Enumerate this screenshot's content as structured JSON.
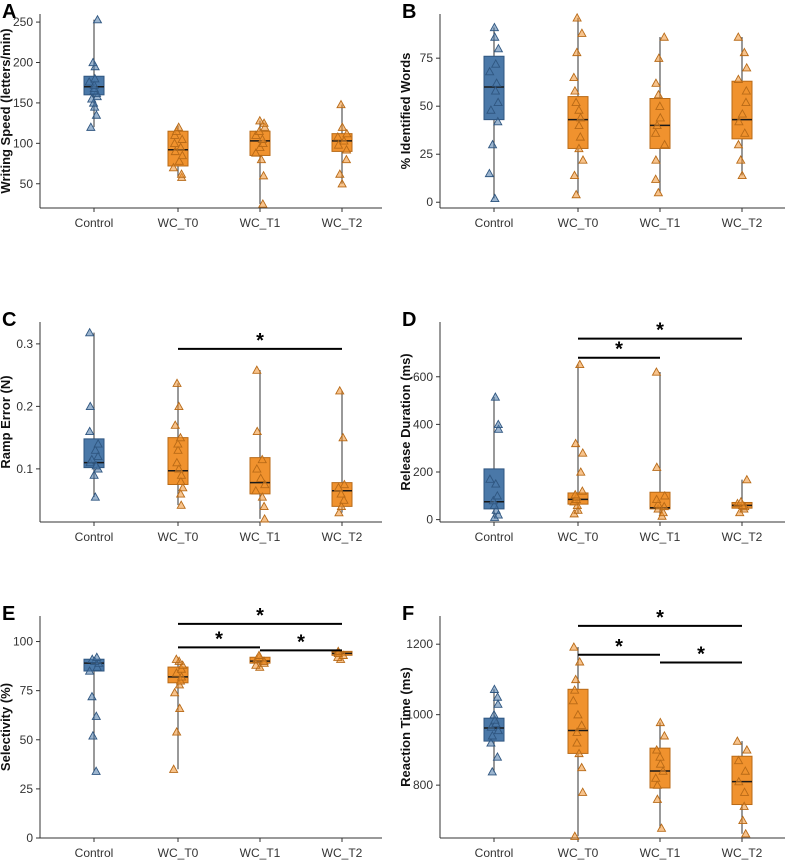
{
  "chart_data": [
    {
      "panel": "A",
      "type": "box",
      "categories": [
        "Control",
        "WC_T0",
        "WC_T1",
        "WC_T2"
      ],
      "ylabel": "Writing Speed (letters/min)",
      "ylim": [
        20,
        260
      ],
      "yticks": [
        50,
        100,
        150,
        200,
        250
      ],
      "boxes": [
        {
          "min": 120,
          "q1": 160,
          "median": 170,
          "q3": 183,
          "max": 253,
          "points": [
            120,
            135,
            145,
            150,
            155,
            158,
            162,
            165,
            168,
            172,
            176,
            180,
            195,
            200,
            253
          ]
        },
        {
          "min": 58,
          "q1": 72,
          "median": 92,
          "q3": 115,
          "max": 122,
          "points": [
            58,
            62,
            70,
            78,
            85,
            90,
            95,
            100,
            105,
            110,
            115,
            120
          ]
        },
        {
          "min": 25,
          "q1": 85,
          "median": 103,
          "q3": 115,
          "max": 128,
          "points": [
            25,
            60,
            80,
            88,
            95,
            100,
            105,
            110,
            115,
            120,
            125,
            128
          ]
        },
        {
          "min": 50,
          "q1": 90,
          "median": 103,
          "q3": 112,
          "max": 148,
          "points": [
            50,
            62,
            80,
            92,
            98,
            103,
            108,
            112,
            120,
            148
          ]
        }
      ],
      "significance": []
    },
    {
      "panel": "B",
      "type": "box",
      "categories": [
        "Control",
        "WC_T0",
        "WC_T1",
        "WC_T2"
      ],
      "ylabel": "% Identified Words",
      "ylim": [
        -3,
        98
      ],
      "yticks": [
        0,
        25,
        50,
        75
      ],
      "boxes": [
        {
          "min": 2,
          "q1": 43,
          "median": 60,
          "q3": 76,
          "max": 91,
          "points": [
            2,
            15,
            30,
            42,
            48,
            52,
            58,
            62,
            68,
            72,
            80,
            86,
            91
          ]
        },
        {
          "min": 4,
          "q1": 28,
          "median": 43,
          "q3": 55,
          "max": 96,
          "points": [
            4,
            14,
            22,
            28,
            34,
            40,
            44,
            48,
            52,
            58,
            65,
            78,
            88,
            96
          ]
        },
        {
          "min": 5,
          "q1": 28,
          "median": 40,
          "q3": 54,
          "max": 86,
          "points": [
            5,
            12,
            22,
            30,
            36,
            40,
            44,
            50,
            56,
            62,
            75,
            86
          ]
        },
        {
          "min": 14,
          "q1": 33,
          "median": 43,
          "q3": 63,
          "max": 86,
          "points": [
            14,
            22,
            30,
            36,
            42,
            46,
            52,
            58,
            64,
            70,
            78,
            86
          ]
        }
      ],
      "significance": []
    },
    {
      "panel": "C",
      "type": "box",
      "categories": [
        "Control",
        "WC_T0",
        "WC_T1",
        "WC_T2"
      ],
      "ylabel": "Ramp Error (N)",
      "ylim": [
        0.015,
        0.335
      ],
      "yticks": [
        0.1,
        0.2,
        0.3
      ],
      "yticklabels": [
        "0.1",
        "0.2",
        "0.3"
      ],
      "boxes": [
        {
          "min": 0.055,
          "q1": 0.102,
          "median": 0.11,
          "q3": 0.148,
          "max": 0.318,
          "points": [
            0.055,
            0.09,
            0.1,
            0.105,
            0.11,
            0.115,
            0.12,
            0.13,
            0.14,
            0.16,
            0.2,
            0.318
          ]
        },
        {
          "min": 0.042,
          "q1": 0.075,
          "median": 0.097,
          "q3": 0.15,
          "max": 0.237,
          "points": [
            0.042,
            0.06,
            0.07,
            0.08,
            0.09,
            0.1,
            0.11,
            0.13,
            0.14,
            0.15,
            0.17,
            0.2,
            0.237
          ]
        },
        {
          "min": 0.02,
          "q1": 0.06,
          "median": 0.078,
          "q3": 0.118,
          "max": 0.258,
          "points": [
            0.02,
            0.04,
            0.055,
            0.065,
            0.075,
            0.085,
            0.1,
            0.115,
            0.16,
            0.258
          ]
        },
        {
          "min": 0.03,
          "q1": 0.04,
          "median": 0.065,
          "q3": 0.078,
          "max": 0.225,
          "points": [
            0.03,
            0.04,
            0.05,
            0.06,
            0.07,
            0.075,
            0.15,
            0.225
          ]
        }
      ],
      "significance": [
        {
          "from": 1,
          "to": 3,
          "y": 0.292,
          "label": "*"
        }
      ]
    },
    {
      "panel": "D",
      "type": "box",
      "categories": [
        "Control",
        "WC_T0",
        "WC_T1",
        "WC_T2"
      ],
      "ylabel": "Release Duration (ms)",
      "ylim": [
        -10,
        830
      ],
      "yticks": [
        0,
        200,
        400,
        600
      ],
      "boxes": [
        {
          "min": 10,
          "q1": 45,
          "median": 75,
          "q3": 213,
          "max": 515,
          "points": [
            10,
            20,
            40,
            60,
            80,
            100,
            150,
            170,
            380,
            400,
            515
          ]
        },
        {
          "min": 25,
          "q1": 65,
          "median": 85,
          "q3": 112,
          "max": 652,
          "points": [
            25,
            40,
            60,
            75,
            85,
            95,
            105,
            120,
            200,
            280,
            320,
            652
          ]
        },
        {
          "min": 15,
          "q1": 45,
          "median": 50,
          "q3": 115,
          "max": 620,
          "points": [
            15,
            30,
            45,
            55,
            65,
            85,
            100,
            220,
            620
          ]
        },
        {
          "min": 30,
          "q1": 48,
          "median": 60,
          "q3": 72,
          "max": 168,
          "points": [
            30,
            45,
            55,
            60,
            68,
            75,
            168
          ]
        }
      ],
      "significance": [
        {
          "from": 1,
          "to": 3,
          "y": 760,
          "label": "*"
        },
        {
          "from": 1,
          "to": 2,
          "y": 680,
          "label": "*"
        }
      ]
    },
    {
      "panel": "E",
      "type": "box",
      "categories": [
        "Control",
        "WC_T0",
        "WC_T1",
        "WC_T2"
      ],
      "ylabel": "Selectivity (%)",
      "ylim": [
        0,
        113
      ],
      "yticks": [
        0,
        25,
        50,
        75,
        100
      ],
      "boxes": [
        {
          "min": 34,
          "q1": 85,
          "median": 89,
          "q3": 91,
          "max": 92,
          "points": [
            34,
            52,
            62,
            72,
            85,
            87,
            89,
            90,
            91,
            92
          ]
        },
        {
          "min": 35,
          "q1": 79,
          "median": 82,
          "q3": 87,
          "max": 91,
          "points": [
            35,
            54,
            66,
            74,
            78,
            80,
            82,
            84,
            86,
            88,
            90,
            91
          ]
        },
        {
          "min": 87,
          "q1": 89,
          "median": 90,
          "q3": 92,
          "max": 93,
          "points": [
            87,
            88,
            89,
            90,
            91,
            92,
            93
          ]
        },
        {
          "min": 91,
          "q1": 93,
          "median": 94,
          "q3": 95,
          "max": 95,
          "points": [
            91,
            92,
            93,
            94,
            95
          ]
        }
      ],
      "significance": [
        {
          "from": 1,
          "to": 3,
          "y": 109,
          "label": "*"
        },
        {
          "from": 1,
          "to": 2,
          "y": 97,
          "label": "*"
        },
        {
          "from": 2,
          "to": 3,
          "y": 95.5,
          "label": "*"
        }
      ]
    },
    {
      "panel": "F",
      "type": "box",
      "categories": [
        "Control",
        "WC_T0",
        "WC_T1",
        "WC_T2"
      ],
      "ylabel": "Reaction Time (ms)",
      "ylim": [
        650,
        1280
      ],
      "yticks": [
        800,
        1000,
        1200
      ],
      "boxes": [
        {
          "min": 838,
          "q1": 925,
          "median": 962,
          "q3": 990,
          "max": 1072,
          "points": [
            838,
            880,
            920,
            940,
            955,
            965,
            975,
            985,
            1000,
            1030,
            1050,
            1072
          ]
        },
        {
          "min": 655,
          "q1": 890,
          "median": 955,
          "q3": 1072,
          "max": 1192,
          "points": [
            655,
            780,
            850,
            890,
            920,
            950,
            970,
            1000,
            1040,
            1070,
            1100,
            1150,
            1192
          ]
        },
        {
          "min": 678,
          "q1": 792,
          "median": 840,
          "q3": 905,
          "max": 978,
          "points": [
            678,
            760,
            800,
            820,
            840,
            860,
            880,
            900,
            940,
            978
          ]
        },
        {
          "min": 662,
          "q1": 745,
          "median": 810,
          "q3": 882,
          "max": 925,
          "points": [
            662,
            700,
            740,
            780,
            810,
            840,
            870,
            900,
            925
          ]
        }
      ],
      "significance": [
        {
          "from": 1,
          "to": 3,
          "y": 1252,
          "label": "*"
        },
        {
          "from": 1,
          "to": 2,
          "y": 1170,
          "label": "*"
        },
        {
          "from": 2,
          "to": 3,
          "y": 1148,
          "label": "*"
        }
      ]
    }
  ],
  "colors": {
    "control_fill": "#4a78a8",
    "control_edge": "#2f5680",
    "wc_fill": "#f0922e",
    "wc_edge": "#b86a17",
    "whisker": "#555555",
    "median": "#1a1a1a"
  }
}
